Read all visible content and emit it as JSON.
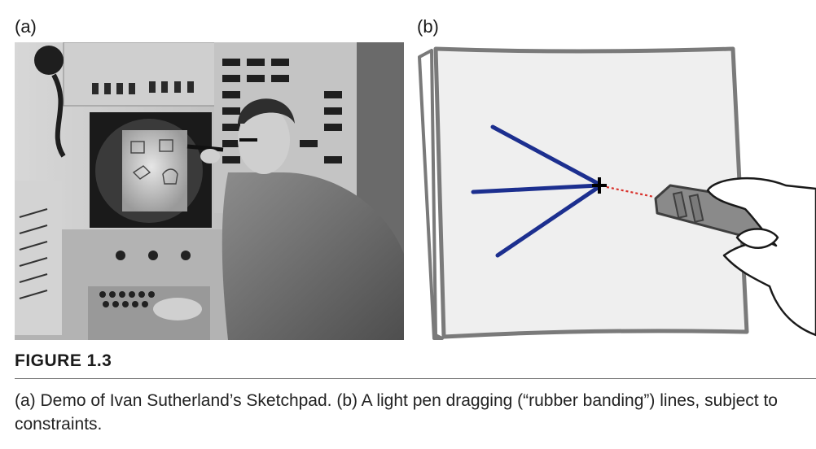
{
  "panels": {
    "a": {
      "label": "(a)"
    },
    "b": {
      "label": "(b)"
    }
  },
  "figure": {
    "title": "FIGURE 1.3",
    "caption": "(a) Demo of Ivan Sutherland’s Sketchpad. (b) A light pen dragging (“rubber banding”) lines, subject to constraints."
  },
  "colors": {
    "line_blue": "#1c2f8f",
    "rubber_band_red": "#d9302a",
    "screen_bg": "#efefef",
    "frame_gray": "#7a7a7a"
  }
}
